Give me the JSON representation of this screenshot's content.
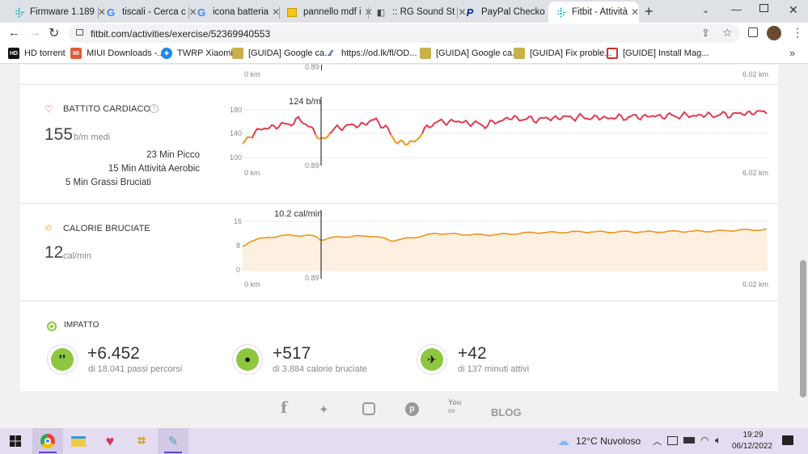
{
  "tabs": [
    {
      "title": "Firmware 1.189",
      "icon": "fitbit-icon"
    },
    {
      "title": "tiscali - Cerca c",
      "icon": "google-icon"
    },
    {
      "title": "icona batteria",
      "icon": "google-icon"
    },
    {
      "title": "pannello mdf i",
      "icon": "shop-icon"
    },
    {
      "title": ":: RG Sound St",
      "icon": "sound-icon"
    },
    {
      "title": "PayPal Checko",
      "icon": "paypal-icon"
    },
    {
      "title": "Fitbit - Attività",
      "icon": "fitbit-icon"
    }
  ],
  "browser": {
    "url": "fitbit.com/activities/exercise/52369940553"
  },
  "bookmarks": [
    "HD torrent",
    "MIUI Downloads -...",
    "TWRP Xiaomi",
    "[GUIDA] Google ca...",
    "https://od.lk/fl/OD...",
    "[GUIDA] Google ca...",
    "[GUIDA] Fix proble...",
    "[GUIDE] Install Mag..."
  ],
  "top_chart": {
    "marker": "0.89",
    "x_start": "0 km",
    "x_end": "6.02 km"
  },
  "heart": {
    "title": "BATTITO CARDIACO",
    "value": "155",
    "unit": "b/m medi",
    "zones": [
      "23 Min Picco",
      "15 Min Attività Aerobic",
      "5 Min Grassi Bruciati"
    ],
    "cursor_label": "124 b/m",
    "marker": "0.89",
    "y_ticks": [
      "180",
      "140",
      "100"
    ],
    "x_start": "0 km",
    "x_end": "6.02 km"
  },
  "calories": {
    "title": "CALORIE BRUCIATE",
    "value": "12",
    "unit": "cal/min",
    "cursor_label": "10.2 cal/min",
    "marker": "0.89",
    "y_ticks": [
      "16",
      "8",
      "0"
    ],
    "x_start": "0 km",
    "x_end": "6.02 km"
  },
  "impact": {
    "title": "IMPATTO",
    "stats": [
      {
        "value": "+6.452",
        "label": "di 18.041 passi percorsi",
        "icon": "footsteps-icon"
      },
      {
        "value": "+517",
        "label": "di 3.884 calorie bruciate",
        "icon": "flame-icon"
      },
      {
        "value": "+42",
        "label": "di 137 minuti attivi",
        "icon": "runner-icon"
      }
    ]
  },
  "footer": {
    "blog": "BLOG"
  },
  "taskbar": {
    "weather": "12°C  Nuvoloso",
    "time": "19:29",
    "date": "06/12/2022"
  },
  "colors": {
    "heart_red": "#e03c50",
    "heart_orange": "#f0a02a",
    "cal_orange": "#e8961e",
    "accent_green": "#8dc63f"
  }
}
